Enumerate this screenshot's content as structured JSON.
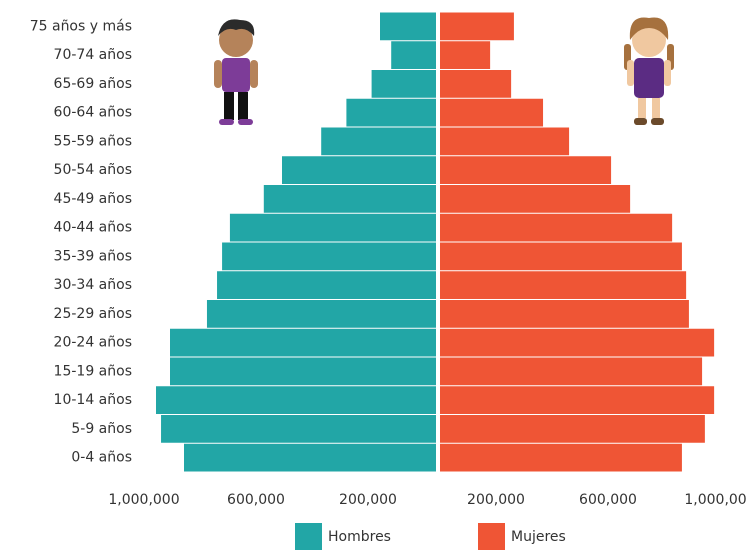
{
  "chart_data": {
    "type": "pyramid",
    "categories": [
      "0-4 años",
      "5-9 años",
      "10-14 años",
      "15-19 años",
      "20-24 años",
      "25-29 años",
      "30-34 años",
      "35-39 años",
      "40-44 años",
      "45-49 años",
      "50-54 años",
      "55-59 años",
      "60-64 años",
      "65-69 años",
      "70-74 años",
      "75 años y más"
    ],
    "series": [
      {
        "name": "Hombres",
        "color": "#22a6a6",
        "values": [
          900000,
          982000,
          1000000,
          950000,
          950000,
          818000,
          782000,
          764000,
          736000,
          615000,
          550000,
          410000,
          320000,
          230000,
          160000,
          200000
        ]
      },
      {
        "name": "Mujeres",
        "color": "#ef5535",
        "values": [
          864000,
          946000,
          979000,
          936000,
          979000,
          889000,
          879000,
          864000,
          829000,
          679000,
          611000,
          461000,
          368000,
          254000,
          179000,
          264000
        ]
      }
    ],
    "xlim": [
      -1000000,
      1000000
    ],
    "xticks": [
      {
        "value": -1000000,
        "label": "1,000,000"
      },
      {
        "value": -600000,
        "label": "600,000"
      },
      {
        "value": -200000,
        "label": "200,000"
      },
      {
        "value": 200000,
        "label": "200,000"
      },
      {
        "value": 600000,
        "label": "600,000"
      },
      {
        "value": 1000000,
        "label": "1,000,000"
      }
    ]
  }
}
